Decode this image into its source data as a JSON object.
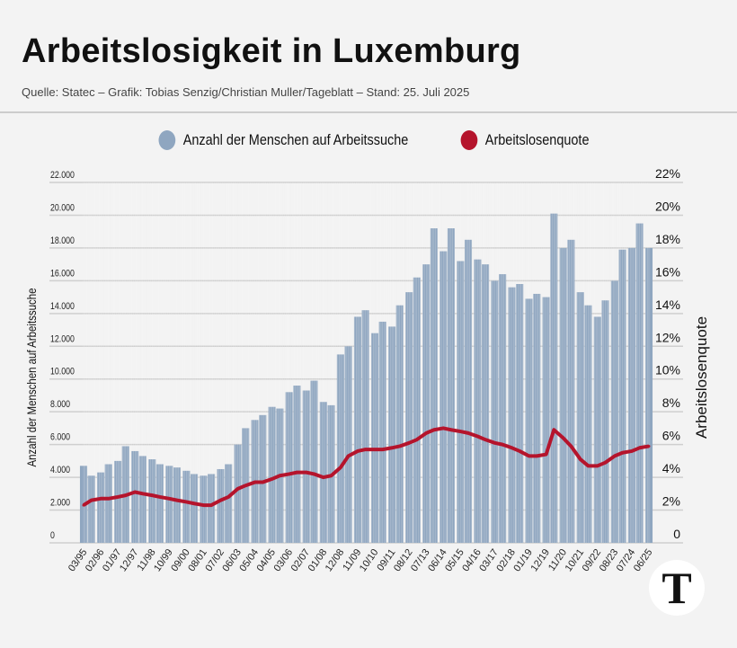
{
  "header": {
    "title": "Arbeitslosigkeit in Luxemburg",
    "subtitle": "Quelle: Statec – Grafik: Tobias Senzig/Christian Muller/Tageblatt – Stand: 25. Juli 2025"
  },
  "logo": {
    "text": "T"
  },
  "chart_data": {
    "type": "bar+line",
    "title": "Arbeitslosigkeit in Luxemburg",
    "legend_position": "top-center",
    "grid": true,
    "y_left": {
      "label": "Anzahl der Menschen auf Arbeitssuche",
      "range": [
        0,
        22000
      ],
      "ticks": [
        "0",
        "2.000",
        "4.000",
        "6.000",
        "8.000",
        "10.000",
        "12.000",
        "14.000",
        "16.000",
        "18.000",
        "20.000",
        "22.000"
      ]
    },
    "y_right": {
      "label": "Arbeitslosenquote",
      "range": [
        0,
        22
      ],
      "ticks": [
        "0",
        "2%",
        "4%",
        "6%",
        "8%",
        "10%",
        "12%",
        "14%",
        "16%",
        "18%",
        "20%",
        "22%"
      ]
    },
    "x_tick_labels": [
      "03/95",
      "02/96",
      "01/97",
      "12/97",
      "11/98",
      "10/99",
      "09/00",
      "08/01",
      "07/02",
      "06/03",
      "05/04",
      "04/05",
      "03/06",
      "02/07",
      "01/08",
      "12/08",
      "11/09",
      "10/10",
      "09/11",
      "08/12",
      "07/13",
      "06/14",
      "05/15",
      "04/16",
      "03/17",
      "02/18",
      "01/19",
      "12/19",
      "11/20",
      "10/21",
      "09/22",
      "08/23",
      "07/24",
      "06/25"
    ],
    "x": [
      "03/95",
      "08/95",
      "02/96",
      "07/96",
      "01/97",
      "06/97",
      "12/97",
      "05/98",
      "11/98",
      "04/99",
      "10/99",
      "03/00",
      "09/00",
      "02/01",
      "08/01",
      "01/02",
      "07/02",
      "12/02",
      "06/03",
      "11/03",
      "05/04",
      "10/04",
      "04/05",
      "09/05",
      "03/06",
      "08/06",
      "02/07",
      "07/07",
      "01/08",
      "06/08",
      "12/08",
      "05/09",
      "11/09",
      "04/10",
      "10/10",
      "03/11",
      "09/11",
      "02/12",
      "08/12",
      "01/13",
      "07/13",
      "12/13",
      "06/14",
      "11/14",
      "05/15",
      "10/15",
      "04/16",
      "09/16",
      "03/17",
      "08/17",
      "02/18",
      "07/18",
      "01/19",
      "06/19",
      "12/19",
      "05/20",
      "11/20",
      "04/21",
      "10/21",
      "03/22",
      "09/22",
      "02/23",
      "08/23",
      "01/24",
      "07/24",
      "12/24",
      "06/25"
    ],
    "series": [
      {
        "name": "Anzahl der Menschen auf Arbeitssuche",
        "type": "bar",
        "color": "#8fa6c0",
        "axis": "left",
        "values": [
          4700,
          4100,
          4300,
          4800,
          5000,
          5900,
          5600,
          5300,
          5100,
          4800,
          4700,
          4600,
          4400,
          4200,
          4100,
          4200,
          4500,
          4800,
          6000,
          7000,
          7500,
          7800,
          8300,
          8200,
          9200,
          9600,
          9300,
          9900,
          8600,
          8400,
          11500,
          12000,
          13800,
          14200,
          12800,
          13500,
          13200,
          14500,
          15300,
          16200,
          17000,
          19200,
          17800,
          19200,
          17200,
          18500,
          17300,
          17000,
          16000,
          16400,
          15600,
          15800,
          14900,
          15200,
          15000,
          20100,
          18000,
          18500,
          15300,
          14500,
          13800,
          14800,
          16000,
          17900,
          18000,
          19500,
          18000
        ]
      },
      {
        "name": "Arbeitslosenquote",
        "type": "line",
        "color": "#b5142c",
        "axis": "right",
        "values": [
          2.3,
          2.6,
          2.7,
          2.7,
          2.8,
          2.9,
          3.1,
          3.0,
          2.9,
          2.8,
          2.7,
          2.6,
          2.5,
          2.4,
          2.3,
          2.3,
          2.6,
          2.8,
          3.3,
          3.5,
          3.7,
          3.7,
          3.9,
          4.1,
          4.2,
          4.3,
          4.3,
          4.2,
          4.0,
          4.1,
          4.6,
          5.3,
          5.6,
          5.7,
          5.7,
          5.7,
          5.8,
          5.9,
          6.1,
          6.3,
          6.7,
          6.9,
          7.0,
          6.9,
          6.8,
          6.7,
          6.5,
          6.3,
          6.1,
          6.0,
          5.8,
          5.6,
          5.3,
          5.3,
          5.4,
          6.9,
          6.4,
          5.9,
          5.1,
          4.7,
          4.7,
          4.9,
          5.3,
          5.5,
          5.6,
          5.8,
          5.9
        ]
      }
    ]
  }
}
